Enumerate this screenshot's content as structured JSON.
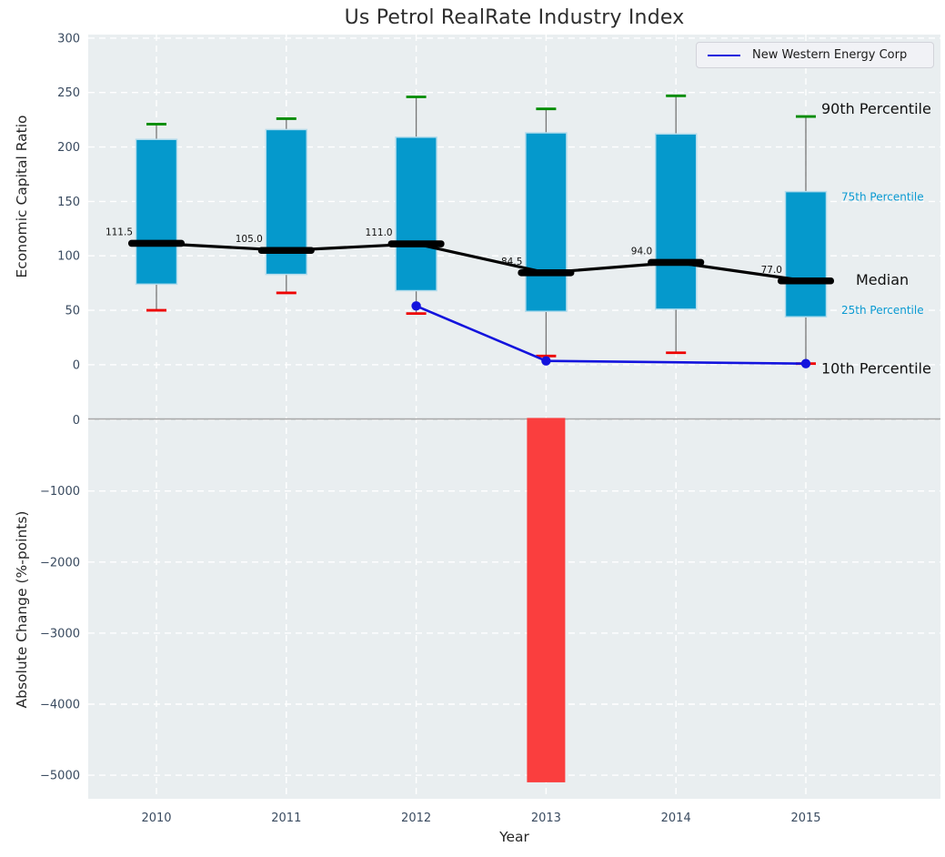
{
  "figure": {
    "title": "Us Petrol RealRate Industry Index",
    "xlabel": "Year",
    "legend": {
      "entries": [
        {
          "label": "New Western Energy Corp",
          "color": "#1313dd"
        }
      ]
    }
  },
  "colors": {
    "panel_background": "#e9eef0",
    "gridline": "#ffffff",
    "box_fill": "#0599cc",
    "box_edge": "#b4dcec",
    "whisker": "#757575",
    "cap_top_green": "#008c00",
    "cap_bottom_red": "#ee0000",
    "median_black": "#000000",
    "company_blue": "#1313dd",
    "change_bar_red": "#fa3e3e",
    "tick_label": "#3a4b60",
    "percentile_minor_label": "#0a9ad2",
    "percentile_major_label": "#111111",
    "zero_line": "#a8a8a8"
  },
  "chart_data": [
    {
      "type": "boxplot",
      "panel": "top",
      "title": "Us Petrol RealRate Industry Index",
      "ylabel": "Economic Capital Ratio",
      "ylim": [
        -60,
        303
      ],
      "yticks": [
        300,
        250,
        200,
        150,
        100,
        50,
        0
      ],
      "grid": true,
      "whisker_percentiles": [
        10,
        90
      ],
      "categories": [
        2010,
        2011,
        2012,
        2013,
        2014,
        2015
      ],
      "boxes": [
        {
          "year": 2010,
          "p10": 50,
          "q25": 74,
          "median": 111.5,
          "q75": 207,
          "p90": 221
        },
        {
          "year": 2011,
          "p10": 66,
          "q25": 83,
          "median": 105.0,
          "q75": 216,
          "p90": 226
        },
        {
          "year": 2012,
          "p10": 47,
          "q25": 68,
          "median": 111.0,
          "q75": 209,
          "p90": 246
        },
        {
          "year": 2013,
          "p10": 8,
          "q25": 49,
          "median": 84.5,
          "q75": 213,
          "p90": 235
        },
        {
          "year": 2014,
          "p10": 11,
          "q25": 51,
          "median": 94.0,
          "q75": 212,
          "p90": 247
        },
        {
          "year": 2015,
          "p10": 1,
          "q25": 44,
          "median": 77.0,
          "q75": 159,
          "p90": 228
        }
      ],
      "median_value_labels": [
        "111.5",
        "105.0",
        "111.0",
        "84.5",
        "94.0",
        "77.0"
      ],
      "series": [
        {
          "name": "New Western Energy Corp",
          "type": "line",
          "color": "#1313dd",
          "points": [
            {
              "x": 2012,
              "y": 54
            },
            {
              "x": 2013,
              "y": 3.5
            },
            {
              "x": 2015,
              "y": 1
            }
          ]
        }
      ],
      "right_labels": [
        {
          "text": "90th Percentile",
          "attach": "p90",
          "emphasis": "major"
        },
        {
          "text": "75th Percentile",
          "attach": "q75",
          "emphasis": "minor"
        },
        {
          "text": "Median",
          "attach": "median",
          "emphasis": "major"
        },
        {
          "text": "25th Percentile",
          "attach": "q25",
          "emphasis": "minor"
        },
        {
          "text": "10th Percentile",
          "attach": "p10",
          "emphasis": "major"
        }
      ],
      "legend_position": "upper right"
    },
    {
      "type": "bar",
      "panel": "bottom",
      "ylabel": "Absolute Change (%-points)",
      "xlabel": "Year",
      "ylim": [
        -5420,
        60
      ],
      "yticks": [
        0,
        -1000,
        -2000,
        -3000,
        -4000,
        -5000
      ],
      "grid": true,
      "categories": [
        2010,
        2011,
        2012,
        2013,
        2014,
        2015
      ],
      "values": [
        null,
        null,
        null,
        -5100,
        null,
        null
      ]
    }
  ]
}
